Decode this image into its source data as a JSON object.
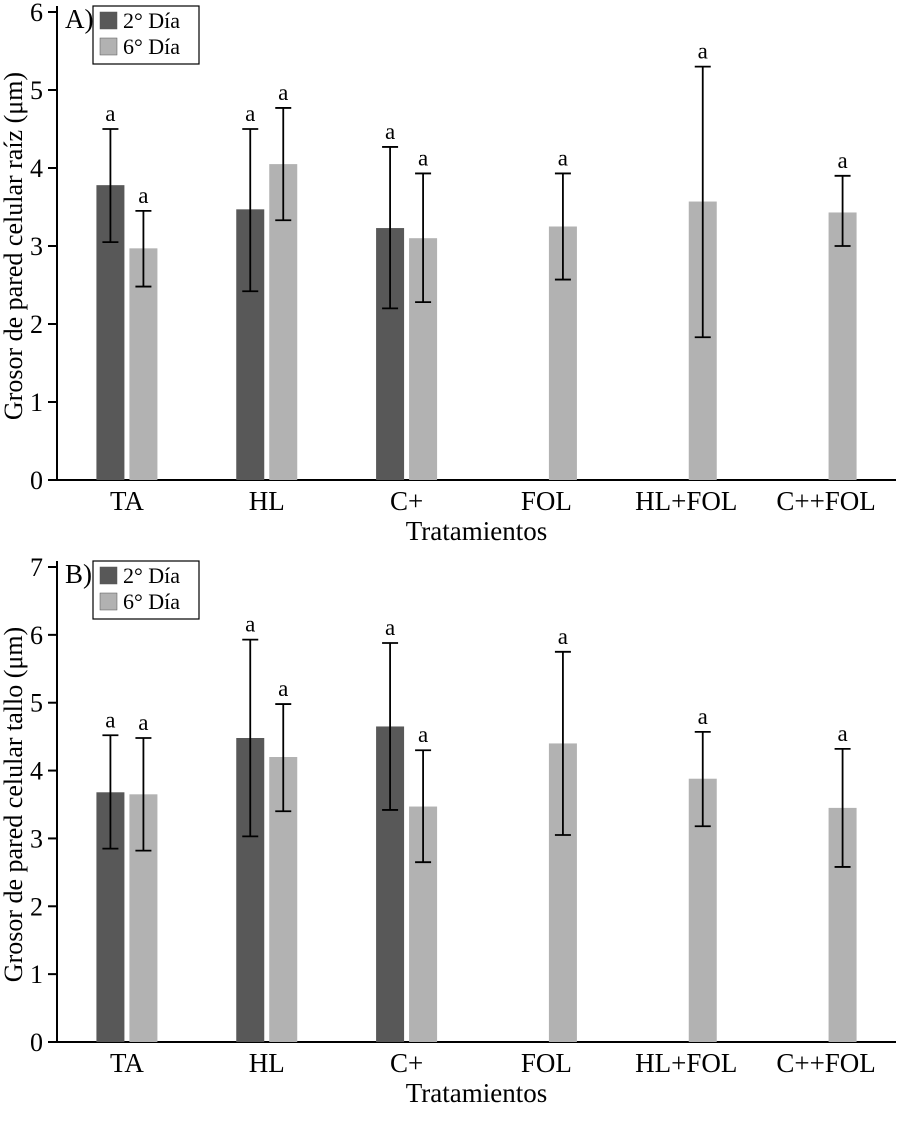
{
  "figure": {
    "background": "#ffffff",
    "axis_color": "#000000"
  },
  "chart_data": [
    {
      "type": "bar",
      "panel_label": "A)",
      "title": "",
      "xlabel": "Tratamientos",
      "ylabel": "Grosor de pared celular raíz (μm)",
      "ylim": [
        0,
        6
      ],
      "yticks": [
        0,
        1,
        2,
        3,
        4,
        5,
        6
      ],
      "grid": false,
      "legend_position": "top-left",
      "categories": [
        "TA",
        "HL",
        "C+",
        "FOL",
        "HL+FOL",
        "C++FOL"
      ],
      "series": [
        {
          "name": "2° Día",
          "color": "#585858",
          "values": [
            3.78,
            3.47,
            3.23,
            null,
            null,
            null
          ],
          "err_low": [
            3.05,
            2.42,
            2.2,
            null,
            null,
            null
          ],
          "err_high": [
            4.5,
            4.5,
            4.27,
            null,
            null,
            null
          ],
          "sig_labels": [
            "a",
            "a",
            "a",
            null,
            null,
            null
          ]
        },
        {
          "name": "6° Día",
          "color": "#b2b2b2",
          "values": [
            2.97,
            4.05,
            3.1,
            3.25,
            3.57,
            3.43
          ],
          "err_low": [
            2.48,
            3.33,
            2.28,
            2.57,
            1.83,
            3.0
          ],
          "err_high": [
            3.45,
            4.77,
            3.93,
            3.93,
            5.3,
            3.9
          ],
          "sig_labels": [
            "a",
            "a",
            "a",
            "a",
            "a",
            "a"
          ]
        }
      ]
    },
    {
      "type": "bar",
      "panel_label": "B)",
      "title": "",
      "xlabel": "Tratamientos",
      "ylabel": "Grosor de pared celular tallo (μm)",
      "ylim": [
        0,
        7
      ],
      "yticks": [
        0,
        1,
        2,
        3,
        4,
        5,
        6,
        7
      ],
      "grid": false,
      "legend_position": "top-left",
      "categories": [
        "TA",
        "HL",
        "C+",
        "FOL",
        "HL+FOL",
        "C++FOL"
      ],
      "series": [
        {
          "name": "2° Día",
          "color": "#585858",
          "values": [
            3.68,
            4.48,
            4.65,
            null,
            null,
            null
          ],
          "err_low": [
            2.85,
            3.03,
            3.42,
            null,
            null,
            null
          ],
          "err_high": [
            4.52,
            5.93,
            5.88,
            null,
            null,
            null
          ],
          "sig_labels": [
            "a",
            "a",
            "a",
            null,
            null,
            null
          ]
        },
        {
          "name": "6° Día",
          "color": "#b2b2b2",
          "values": [
            3.65,
            4.2,
            3.47,
            4.4,
            3.88,
            3.45
          ],
          "err_low": [
            2.82,
            3.4,
            2.65,
            3.05,
            3.18,
            2.58
          ],
          "err_high": [
            4.48,
            4.98,
            4.3,
            5.75,
            4.57,
            4.32
          ],
          "sig_labels": [
            "a",
            "a",
            "a",
            "a",
            "a",
            "a"
          ]
        }
      ]
    }
  ]
}
